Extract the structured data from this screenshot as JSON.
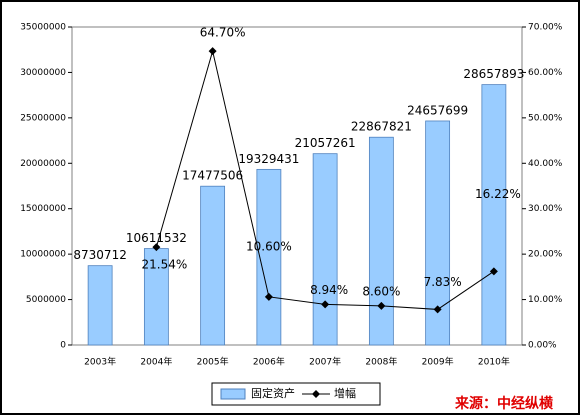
{
  "chart_data": {
    "type": "bar-line",
    "categories": [
      "2003年",
      "2004年",
      "2005年",
      "2006年",
      "2007年",
      "2008年",
      "2009年",
      "2010年"
    ],
    "series": [
      {
        "name": "固定资产",
        "color": "#99ccff",
        "values": [
          8730712,
          10611532,
          17477506,
          19329431,
          21057261,
          22867821,
          24657699,
          28657893
        ]
      },
      {
        "name": "增幅",
        "color": "#000000",
        "axis": "y2",
        "values": [
          null,
          21.54,
          64.7,
          10.6,
          8.94,
          8.6,
          7.83,
          16.22
        ],
        "value_labels": [
          null,
          "21.54%",
          "64.70%",
          "10.60%",
          "8.94%",
          "8.60%",
          "7.83%",
          "16.22%"
        ]
      }
    ],
    "ylim": [
      0,
      35000000
    ],
    "yticks": [
      0,
      5000000,
      10000000,
      15000000,
      20000000,
      25000000,
      30000000,
      35000000
    ],
    "y2lim": [
      0,
      70
    ],
    "y2ticks": [
      {
        "value": 0,
        "label": "0.00%"
      },
      {
        "value": 10,
        "label": "10.00%"
      },
      {
        "value": 20,
        "label": "20.00%"
      },
      {
        "value": 30,
        "label": "30.00%"
      },
      {
        "value": 40,
        "label": "40.00%"
      },
      {
        "value": 50,
        "label": "50.00%"
      },
      {
        "value": 60,
        "label": "60.00%"
      },
      {
        "value": 70,
        "label": "70.00%"
      }
    ],
    "source": "来源：中经纵横"
  }
}
